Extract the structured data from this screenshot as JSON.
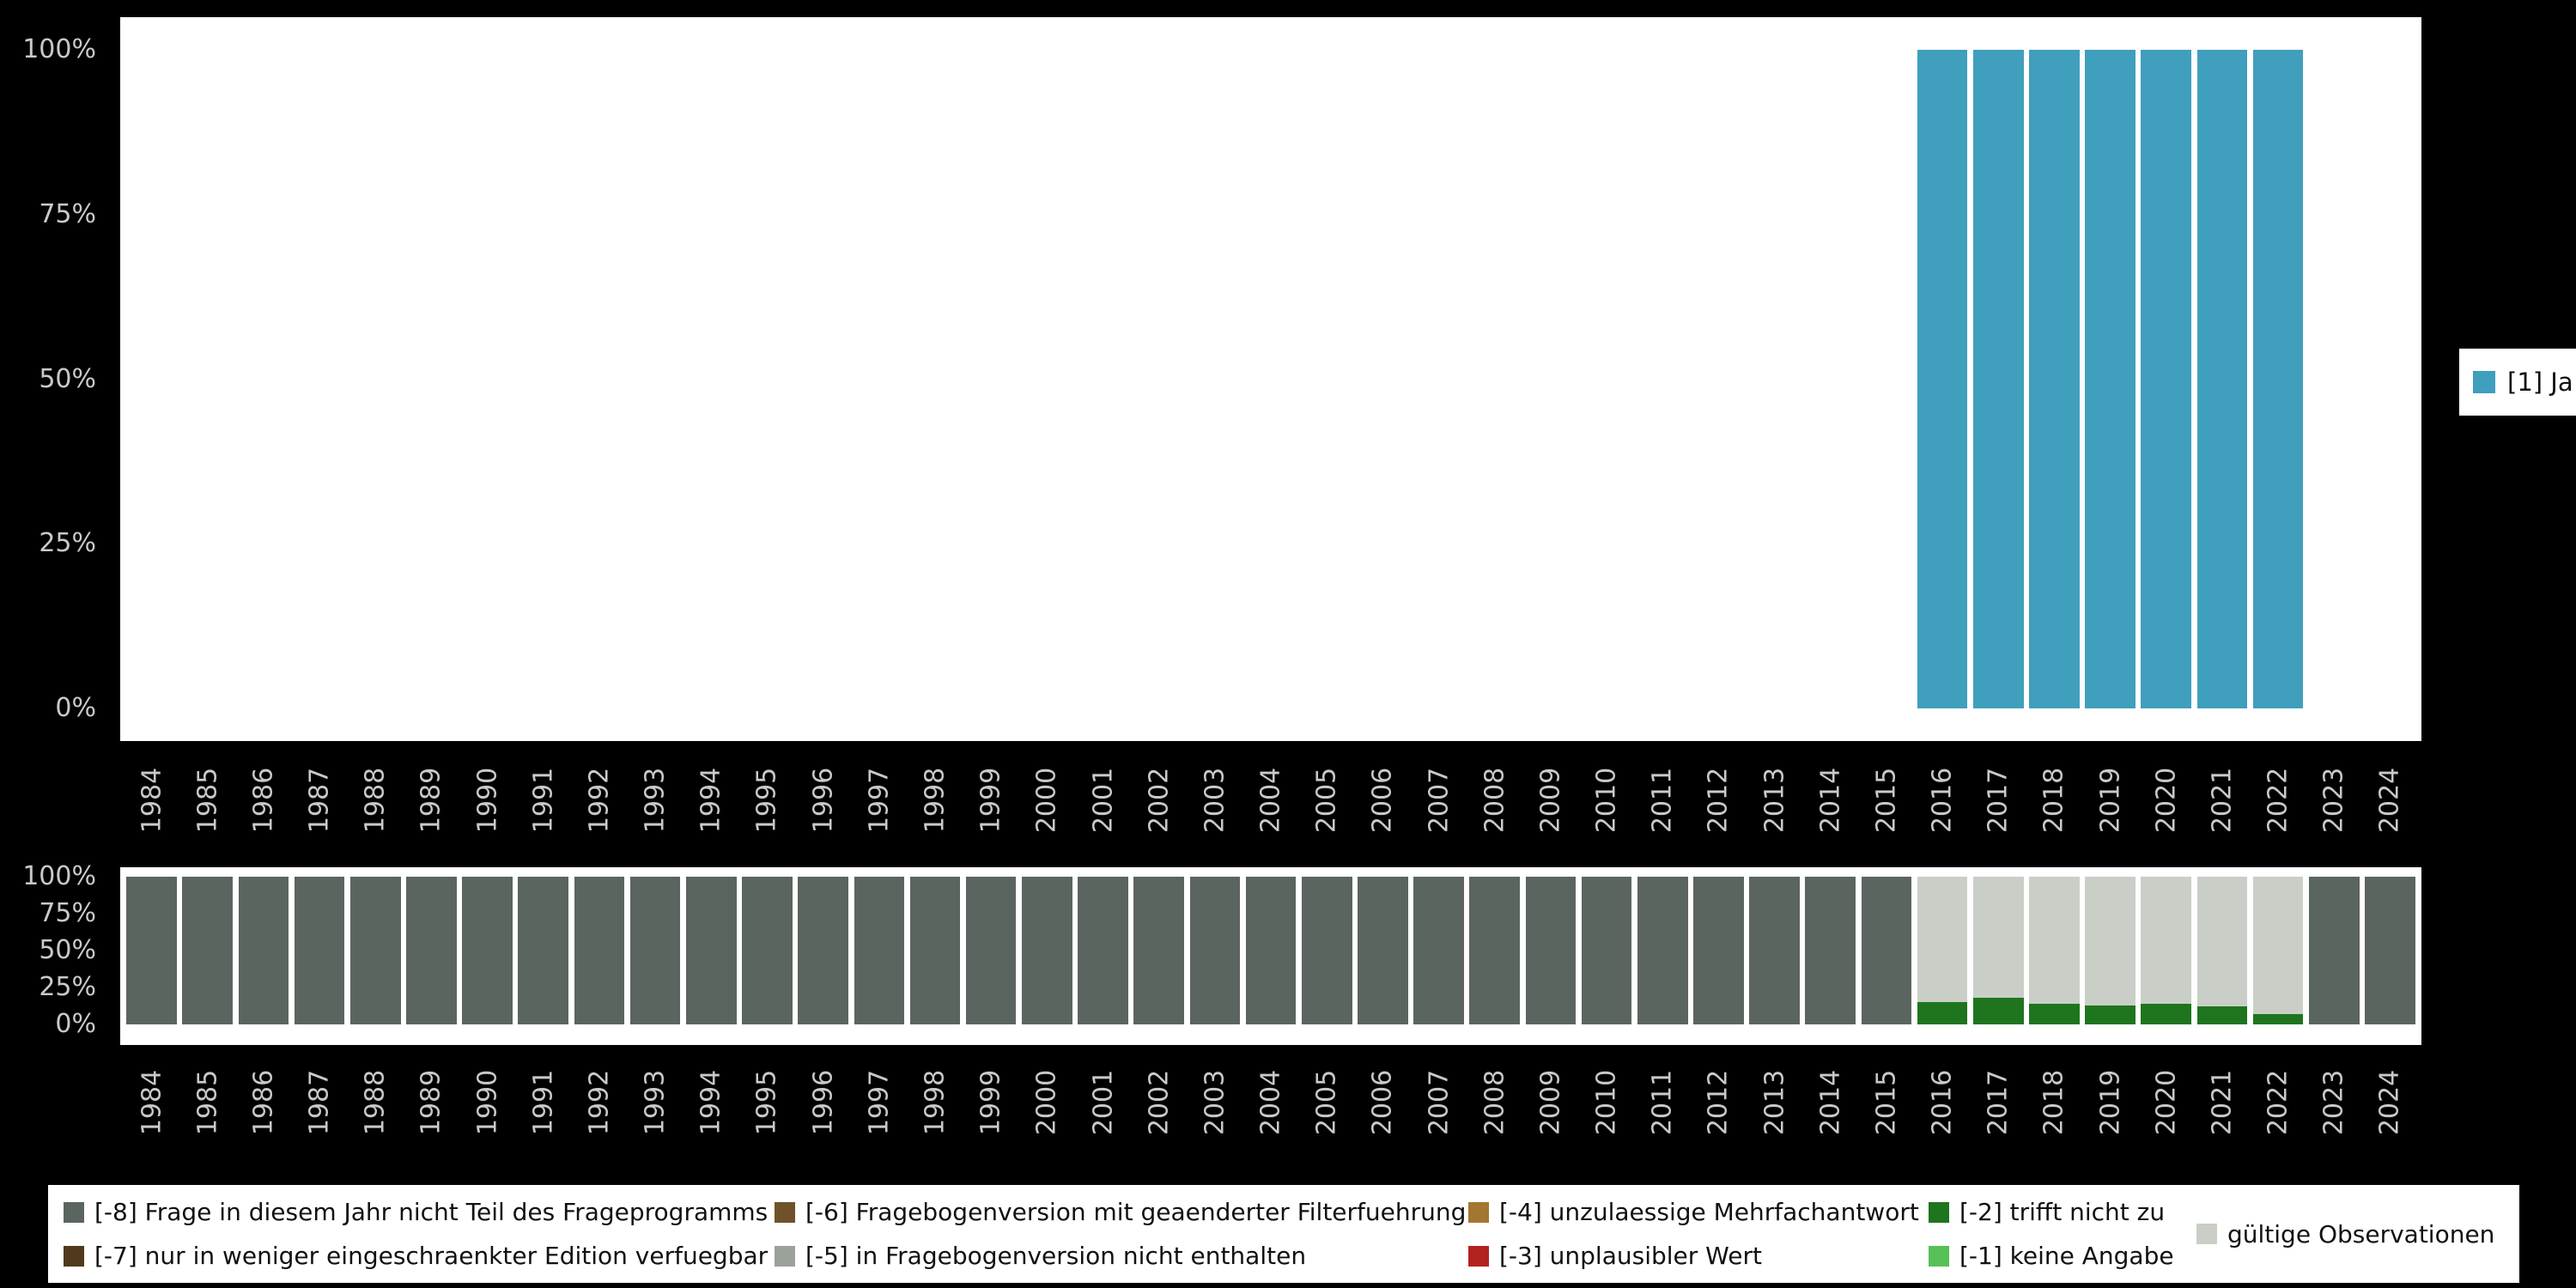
{
  "colors": {
    "background": "#000000",
    "plot_background": "#ffffff",
    "tick_text": "#c9c9c9",
    "legend_text": "#111111",
    "accent_teal": "#3f9fbd"
  },
  "chart_data": [
    {
      "name": "answers",
      "type": "bar",
      "stacked": true,
      "title": "",
      "xlabel": "",
      "ylabel": "",
      "grid": false,
      "legend_position": "right",
      "x_tick_rotation": 90,
      "ylim": [
        0,
        100
      ],
      "yticks": [
        {
          "value": 0,
          "label": "0%"
        },
        {
          "value": 25,
          "label": "25%"
        },
        {
          "value": 50,
          "label": "50%"
        },
        {
          "value": 75,
          "label": "75%"
        },
        {
          "value": 100,
          "label": "100%"
        }
      ],
      "categories": [
        "1984",
        "1985",
        "1986",
        "1987",
        "1988",
        "1989",
        "1990",
        "1991",
        "1992",
        "1993",
        "1994",
        "1995",
        "1996",
        "1997",
        "1998",
        "1999",
        "2000",
        "2001",
        "2002",
        "2003",
        "2004",
        "2005",
        "2006",
        "2007",
        "2008",
        "2009",
        "2010",
        "2011",
        "2012",
        "2013",
        "2014",
        "2015",
        "2016",
        "2017",
        "2018",
        "2019",
        "2020",
        "2021",
        "2022",
        "2023",
        "2024"
      ],
      "series": [
        {
          "name": "[1] Ja",
          "color": "#3f9fbd",
          "values": [
            0,
            0,
            0,
            0,
            0,
            0,
            0,
            0,
            0,
            0,
            0,
            0,
            0,
            0,
            0,
            0,
            0,
            0,
            0,
            0,
            0,
            0,
            0,
            0,
            0,
            0,
            0,
            0,
            0,
            0,
            0,
            0,
            100,
            100,
            100,
            100,
            100,
            100,
            100,
            0,
            0
          ]
        }
      ]
    },
    {
      "name": "missings",
      "type": "bar",
      "stacked": true,
      "title": "",
      "xlabel": "",
      "ylabel": "",
      "grid": false,
      "legend_position": "bottom",
      "x_tick_rotation": 90,
      "ylim": [
        0,
        100
      ],
      "yticks": [
        {
          "value": 0,
          "label": "0%"
        },
        {
          "value": 25,
          "label": "25%"
        },
        {
          "value": 50,
          "label": "50%"
        },
        {
          "value": 75,
          "label": "75%"
        },
        {
          "value": 100,
          "label": "100%"
        }
      ],
      "categories": [
        "1984",
        "1985",
        "1986",
        "1987",
        "1988",
        "1989",
        "1990",
        "1991",
        "1992",
        "1993",
        "1994",
        "1995",
        "1996",
        "1997",
        "1998",
        "1999",
        "2000",
        "2001",
        "2002",
        "2003",
        "2004",
        "2005",
        "2006",
        "2007",
        "2008",
        "2009",
        "2010",
        "2011",
        "2012",
        "2013",
        "2014",
        "2015",
        "2016",
        "2017",
        "2018",
        "2019",
        "2020",
        "2021",
        "2022",
        "2023",
        "2024"
      ],
      "series": [
        {
          "name": "[-8] Frage in diesem Jahr nicht Teil des Frageprogramms",
          "color": "#5b655f",
          "values": [
            100,
            100,
            100,
            100,
            100,
            100,
            100,
            100,
            100,
            100,
            100,
            100,
            100,
            100,
            100,
            100,
            100,
            100,
            100,
            100,
            100,
            100,
            100,
            100,
            100,
            100,
            100,
            100,
            100,
            100,
            100,
            100,
            0,
            0,
            0,
            0,
            0,
            0,
            0,
            100,
            100
          ]
        },
        {
          "name": "[-2] trifft nicht zu",
          "color": "#1e751e",
          "values": [
            0,
            0,
            0,
            0,
            0,
            0,
            0,
            0,
            0,
            0,
            0,
            0,
            0,
            0,
            0,
            0,
            0,
            0,
            0,
            0,
            0,
            0,
            0,
            0,
            0,
            0,
            0,
            0,
            0,
            0,
            0,
            0,
            15,
            18,
            14,
            13,
            14,
            12,
            7,
            0,
            0
          ]
        },
        {
          "name": "gültige Observationen",
          "color": "#c9cfc7",
          "values": [
            0,
            0,
            0,
            0,
            0,
            0,
            0,
            0,
            0,
            0,
            0,
            0,
            0,
            0,
            0,
            0,
            0,
            0,
            0,
            0,
            0,
            0,
            0,
            0,
            0,
            0,
            0,
            0,
            0,
            0,
            0,
            0,
            85,
            82,
            86,
            87,
            86,
            88,
            93,
            0,
            0
          ]
        }
      ]
    }
  ],
  "legend_right": {
    "items": [
      {
        "label": "[1] Ja",
        "color": "#3f9fbd"
      }
    ]
  },
  "legend_bottom": {
    "columns": [
      {
        "items": [
          {
            "label": "[-8] Frage in diesem Jahr nicht Teil des Frageprogramms",
            "color": "#5b655f"
          },
          {
            "label": "[-7] nur in weniger eingeschraenkter Edition verfuegbar",
            "color": "#50391c"
          }
        ]
      },
      {
        "items": [
          {
            "label": "[-6] Fragebogenversion mit geaenderter Filterfuehrung",
            "color": "#70522a"
          },
          {
            "label": "[-5] in Fragebogenversion nicht enthalten",
            "color": "#9ba29a"
          }
        ]
      },
      {
        "items": [
          {
            "label": "[-4] unzulaessige Mehrfachantwort",
            "color": "#a4762f"
          },
          {
            "label": "[-3] unplausibler Wert",
            "color": "#b2221f"
          }
        ]
      },
      {
        "items": [
          {
            "label": "[-2] trifft nicht zu",
            "color": "#1e751e"
          },
          {
            "label": "[-1] keine Angabe",
            "color": "#56c156"
          }
        ]
      },
      {
        "items": [
          {
            "label": "gültige Observationen",
            "color": "#c9cfc7"
          }
        ]
      }
    ]
  }
}
